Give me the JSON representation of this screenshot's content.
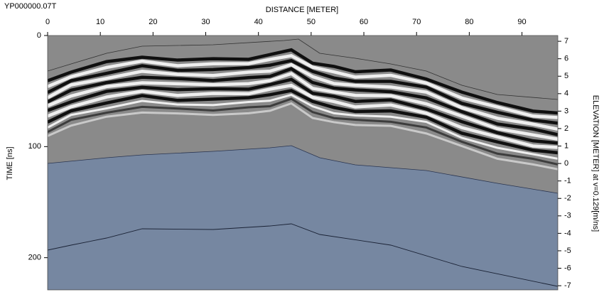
{
  "chart_data": {
    "type": "radargram",
    "title": "YP000000.07T",
    "x_label": "DISTANCE [METER]",
    "y_label": "TIME [ns]",
    "y2_label": "ELEVATION [METER] at v=0.129[m/ns]",
    "xlim": [
      0,
      96.8
    ],
    "xticks": [
      0,
      10,
      20,
      30,
      40,
      50,
      60,
      70,
      80,
      90
    ],
    "ylim": [
      0,
      229
    ],
    "yticks": [
      0,
      100,
      200
    ],
    "y_inverted": true,
    "y2lim": [
      -7.24,
      7.33
    ],
    "y2ticks": [
      -7,
      -6,
      -5,
      -4,
      -3,
      -2,
      -1,
      0,
      1,
      2,
      3,
      4,
      5,
      6,
      7
    ]
  }
}
